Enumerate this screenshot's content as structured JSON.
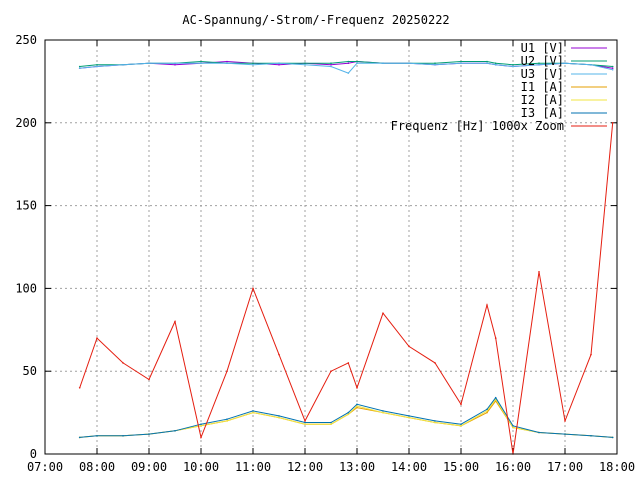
{
  "chart_data": {
    "type": "line",
    "title": "AC-Spannung/-Strom/-Frequenz 20250222",
    "xlabel": "",
    "ylabel": "",
    "x_ticks": [
      "07:00",
      "08:00",
      "09:00",
      "10:00",
      "11:00",
      "12:00",
      "13:00",
      "14:00",
      "15:00",
      "16:00",
      "17:00",
      "18:00"
    ],
    "y_ticks": [
      "0",
      "50",
      "100",
      "150",
      "200",
      "250"
    ],
    "xlim": [
      "07:00",
      "18:00"
    ],
    "ylim": [
      0,
      250
    ],
    "grid": true,
    "legend_position": "top-right",
    "x": [
      "07:40",
      "08:00",
      "08:30",
      "09:00",
      "09:30",
      "10:00",
      "10:30",
      "11:00",
      "11:30",
      "12:00",
      "12:30",
      "12:50",
      "13:00",
      "13:30",
      "14:00",
      "14:30",
      "15:00",
      "15:30",
      "15:40",
      "16:00",
      "16:30",
      "17:00",
      "17:30",
      "17:55"
    ],
    "series": [
      {
        "name": "U1 [V]",
        "color": "#9400d3",
        "values": [
          233,
          234,
          235,
          236,
          235,
          236,
          237,
          236,
          235,
          236,
          235,
          236,
          237,
          236,
          236,
          235,
          236,
          236,
          235,
          234,
          235,
          236,
          235,
          233
        ]
      },
      {
        "name": "U2 [V]",
        "color": "#009e73",
        "values": [
          234,
          235,
          235,
          236,
          236,
          237,
          236,
          236,
          236,
          236,
          236,
          237,
          237,
          236,
          236,
          236,
          237,
          237,
          236,
          235,
          236,
          236,
          235,
          234
        ]
      },
      {
        "name": "U3 [V]",
        "color": "#56b4e9",
        "values": [
          233,
          234,
          235,
          236,
          236,
          236,
          236,
          235,
          236,
          235,
          234,
          230,
          236,
          236,
          236,
          235,
          236,
          236,
          235,
          234,
          235,
          236,
          235,
          232
        ]
      },
      {
        "name": "I1 [A]",
        "color": "#e69f00",
        "values": [
          10,
          11,
          11,
          12,
          14,
          17,
          20,
          25,
          22,
          18,
          18,
          24,
          28,
          25,
          22,
          19,
          17,
          25,
          32,
          16,
          13,
          12,
          11,
          10
        ]
      },
      {
        "name": "I2 [A]",
        "color": "#f0e442",
        "values": [
          10,
          11,
          11,
          12,
          14,
          17,
          20,
          25,
          22,
          18,
          18,
          24,
          29,
          25,
          22,
          19,
          17,
          26,
          33,
          16,
          13,
          12,
          11,
          10
        ]
      },
      {
        "name": "I3 [A]",
        "color": "#0072b2",
        "values": [
          10,
          11,
          11,
          12,
          14,
          18,
          21,
          26,
          23,
          19,
          19,
          25,
          30,
          26,
          23,
          20,
          18,
          27,
          34,
          17,
          13,
          12,
          11,
          10
        ]
      },
      {
        "name": "Frequenz [Hz] 1000x Zoom",
        "color": "#e51e10",
        "values": [
          40,
          70,
          55,
          45,
          80,
          10,
          50,
          100,
          60,
          20,
          50,
          55,
          40,
          85,
          65,
          55,
          30,
          90,
          70,
          0,
          110,
          20,
          60,
          200
        ]
      }
    ]
  }
}
